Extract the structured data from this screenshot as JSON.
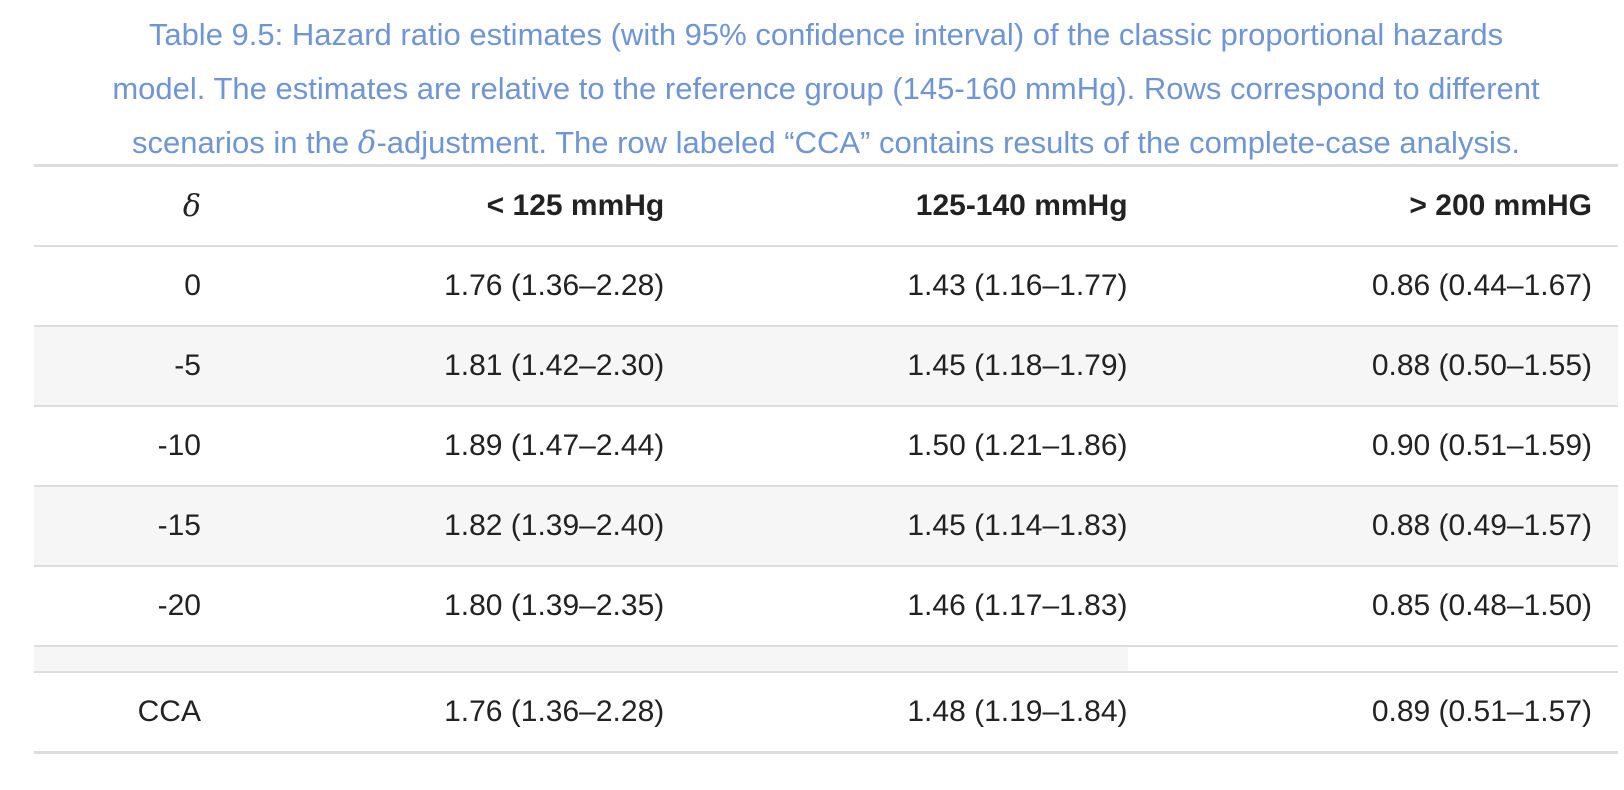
{
  "caption": {
    "line1": "Table 9.5: Hazard ratio estimates (with 95% confidence interval) of the classic proportional hazards",
    "line2": "model. The estimates are relative to the reference group (145-160 mmHg). Rows correspond to different",
    "line3_pre": "scenarios in the ",
    "line3_symbol": "δ",
    "line3_post": "-adjustment. The row labeled “CCA” contains results of the complete-case analysis."
  },
  "table": {
    "headers": [
      "δ",
      "< 125 mmHg",
      "125-140 mmHg",
      "> 200 mmHG"
    ],
    "rows": [
      [
        "0",
        "1.76 (1.36–2.28)",
        "1.43 (1.16–1.77)",
        "0.86 (0.44–1.67)"
      ],
      [
        "-5",
        "1.81 (1.42–2.30)",
        "1.45 (1.18–1.79)",
        "0.88 (0.50–1.55)"
      ],
      [
        "-10",
        "1.89 (1.47–2.44)",
        "1.50 (1.21–1.86)",
        "0.90 (0.51–1.59)"
      ],
      [
        "-15",
        "1.82 (1.39–2.40)",
        "1.45 (1.14–1.83)",
        "0.88 (0.49–1.57)"
      ],
      [
        "-20",
        "1.80 (1.39–2.35)",
        "1.46 (1.17–1.83)",
        "0.85 (0.48–1.50)"
      ]
    ],
    "cca_row": [
      "CCA",
      "1.76 (1.36–2.28)",
      "1.48 (1.19–1.84)",
      "0.89 (0.51–1.57)"
    ]
  },
  "colors": {
    "caption": "#6f95d2",
    "stripe": "#f6f6f6",
    "rule": "#dddddd",
    "text": "#222222"
  }
}
